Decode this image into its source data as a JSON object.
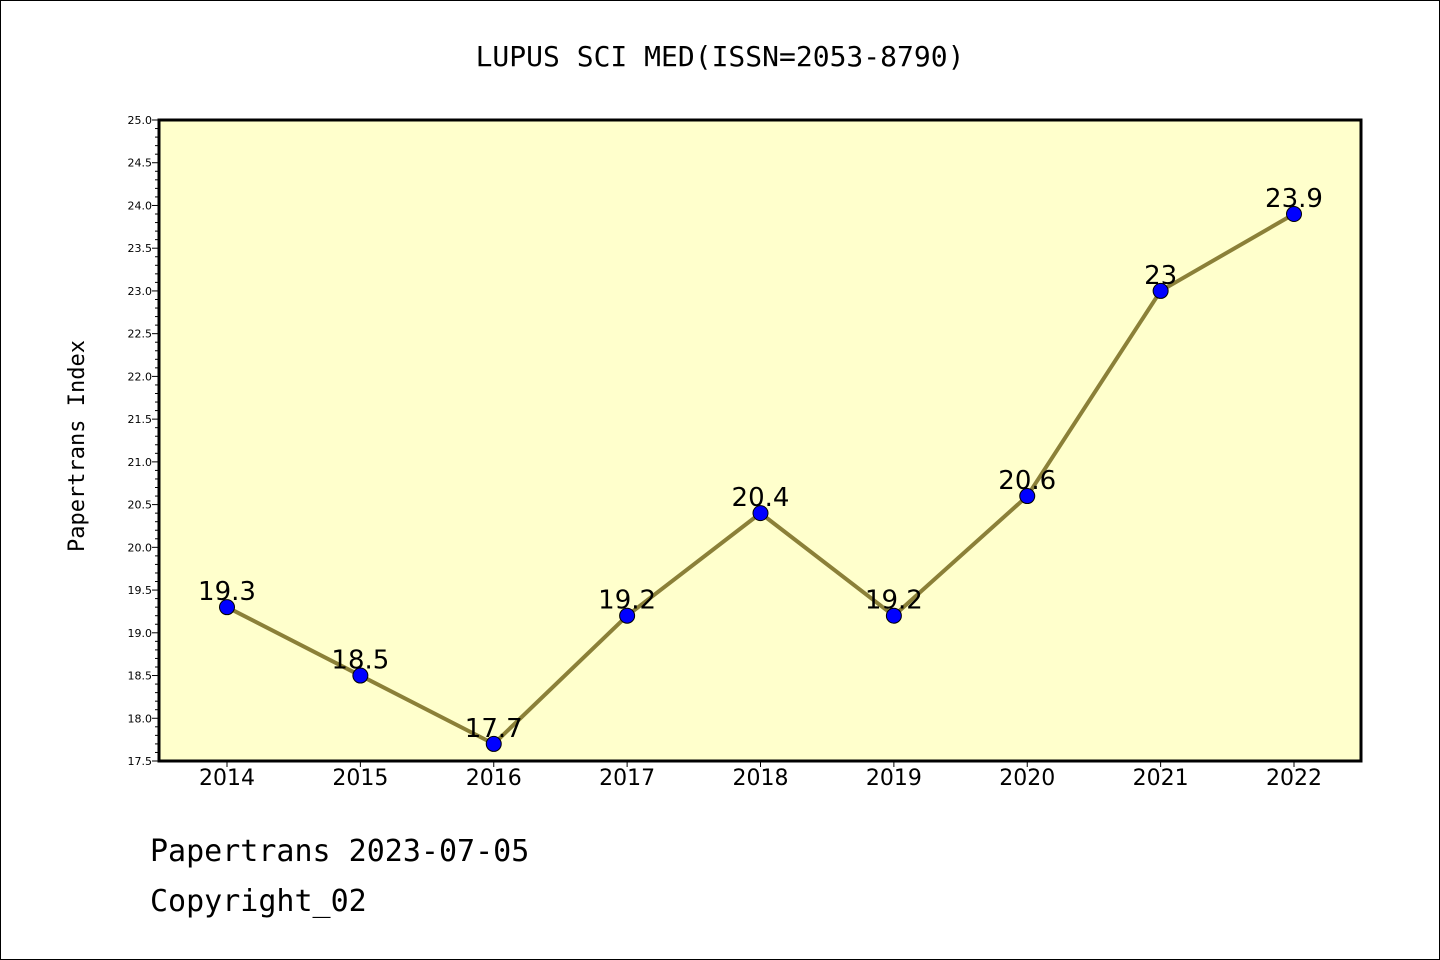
{
  "chart_data": {
    "type": "line",
    "title": "LUPUS SCI MED(ISSN=2053-8790)",
    "xlabel": "",
    "ylabel": "Papertrans Index",
    "categories": [
      "2014",
      "2015",
      "2016",
      "2017",
      "2018",
      "2019",
      "2020",
      "2021",
      "2022"
    ],
    "values": [
      19.3,
      18.5,
      17.7,
      19.2,
      20.4,
      19.2,
      20.6,
      23.0,
      23.9
    ],
    "data_labels": [
      "19.3",
      "18.5",
      "17.7",
      "19.2",
      "20.4",
      "19.2",
      "20.6",
      "23",
      "23.9"
    ],
    "ylim": [
      17.5,
      25.0
    ],
    "yticks": [
      "17.5",
      "18.0",
      "18.5",
      "19.0",
      "19.5",
      "20.0",
      "20.5",
      "21.0",
      "21.5",
      "22.0",
      "22.5",
      "23.0",
      "23.5",
      "24.0",
      "24.5",
      "25.0"
    ],
    "grid": false,
    "colors": {
      "plot_background": "#ffffcc",
      "line": "#8b8038",
      "marker": "#0000ff"
    }
  },
  "footer": {
    "date_line": "Papertrans 2023-07-05",
    "copyright": "Copyright_02"
  }
}
